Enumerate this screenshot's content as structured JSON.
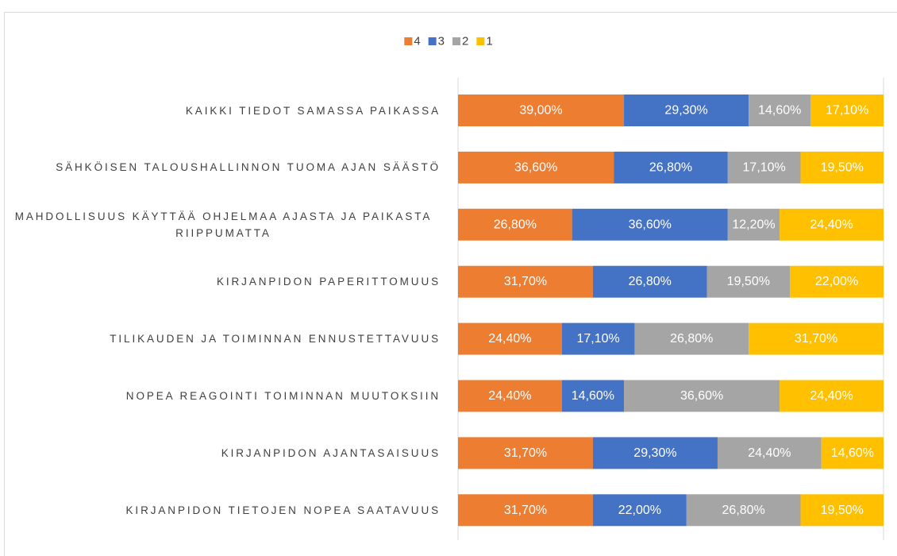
{
  "chart_data": {
    "type": "stacked-barh",
    "categories": [
      "KAIKKI TIEDOT SAMASSA PAIKASSA",
      "SÄHKÖISEN TALOUSHALLINNON TUOMA AJAN SÄÄSTÖ",
      "MAHDOLLISUUS KÄYTTÄÄ OHJELMAA AJASTA JA PAIKASTA RIIPPUMATTA",
      "KIRJANPIDON PAPERITTOMUUS",
      "TILIKAUDEN JA TOIMINNAN ENNUSTETTAVUUS",
      "NOPEA REAGOINTI TOIMINNAN MUUTOKSIIN",
      "KIRJANPIDON AJANTASAISUUS",
      "KIRJANPIDON TIETOJEN NOPEA SAATAVUUS"
    ],
    "series": [
      {
        "name": "4",
        "color": "#ed7d31",
        "values": [
          39.0,
          36.6,
          26.8,
          31.7,
          24.4,
          24.4,
          31.7,
          31.7
        ],
        "value_labels": [
          "39,00%",
          "36,60%",
          "26,80%",
          "31,70%",
          "24,40%",
          "24,40%",
          "31,70%",
          "31,70%"
        ]
      },
      {
        "name": "3",
        "color": "#4472c4",
        "values": [
          29.3,
          26.8,
          36.6,
          26.8,
          17.1,
          14.6,
          29.3,
          22.0
        ],
        "value_labels": [
          "29,30%",
          "26,80%",
          "36,60%",
          "26,80%",
          "17,10%",
          "14,60%",
          "29,30%",
          "22,00%"
        ]
      },
      {
        "name": "2",
        "color": "#a5a5a5",
        "values": [
          14.6,
          17.1,
          12.2,
          19.5,
          26.8,
          36.6,
          24.4,
          26.8
        ],
        "value_labels": [
          "14,60%",
          "17,10%",
          "12,20%",
          "19,50%",
          "26,80%",
          "36,60%",
          "24,40%",
          "26,80%"
        ]
      },
      {
        "name": "1",
        "color": "#ffc000",
        "values": [
          17.1,
          19.5,
          24.4,
          22.0,
          31.7,
          24.4,
          14.6,
          19.5
        ],
        "value_labels": [
          "17,10%",
          "19,50%",
          "24,40%",
          "22,00%",
          "31,70%",
          "24,40%",
          "14,60%",
          "19,50%"
        ]
      }
    ],
    "xlim": [
      0,
      100
    ],
    "legend": "top"
  }
}
